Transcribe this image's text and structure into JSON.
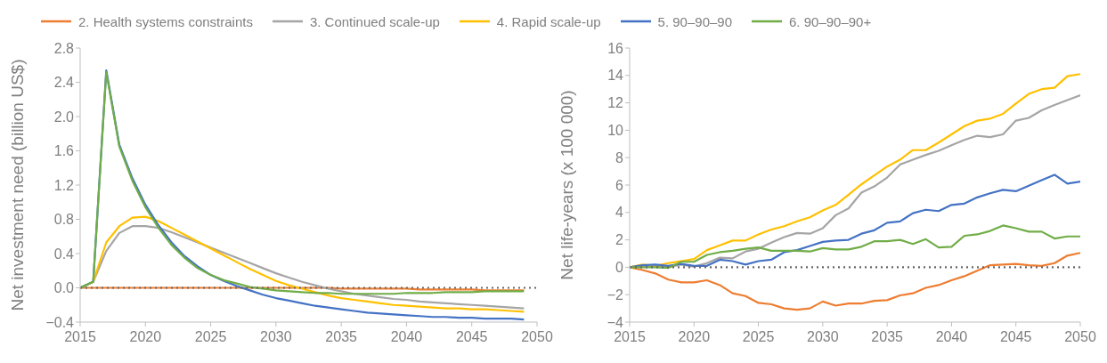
{
  "chart_data": [
    {
      "type": "line",
      "ylabel": "Net investment need (billion US$)",
      "legend": "top",
      "grid": false,
      "marker": "none",
      "x": [
        2015,
        2016,
        2017,
        2018,
        2019,
        2020,
        2021,
        2022,
        2023,
        2024,
        2025,
        2026,
        2027,
        2028,
        2029,
        2030,
        2031,
        2032,
        2033,
        2034,
        2035,
        2036,
        2037,
        2038,
        2039,
        2040,
        2041,
        2042,
        2043,
        2044,
        2045,
        2046,
        2047,
        2048,
        2049
      ],
      "xlim": [
        2015,
        2050
      ],
      "xticks": [
        2015,
        2020,
        2025,
        2030,
        2035,
        2040,
        2045,
        2050
      ],
      "ylim": [
        -0.4,
        2.8
      ],
      "yticks": [
        {
          "value": -0.4,
          "label": "−0.4"
        },
        {
          "value": 0,
          "label": "0.0"
        },
        {
          "value": 0.4,
          "label": "0.4"
        },
        {
          "value": 0.8,
          "label": "0.8"
        },
        {
          "value": 1.2,
          "label": "1.2"
        },
        {
          "value": 1.6,
          "label": "1.6"
        },
        {
          "value": 2,
          "label": "2.0"
        },
        {
          "value": 2.4,
          "label": "2.4"
        },
        {
          "value": 2.8,
          "label": "2.8"
        }
      ],
      "ref_lines": [
        {
          "axis": "y",
          "value": 0,
          "color": "#666666",
          "line_style": "dotted"
        }
      ],
      "series": [
        {
          "name": "2. Health systems constraints",
          "color": "#ed7d31",
          "values": [
            0,
            0,
            0,
            0,
            0,
            0,
            0,
            0,
            0,
            0,
            0,
            0,
            0,
            0,
            0,
            0,
            0,
            0,
            0,
            0,
            -0.01,
            -0.01,
            -0.01,
            -0.01,
            -0.01,
            -0.01,
            -0.02,
            -0.02,
            -0.02,
            -0.02,
            -0.02,
            -0.03,
            -0.03,
            -0.03,
            -0.03
          ]
        },
        {
          "name": "3. Continued scale-up",
          "color": "#a5a5a5",
          "values": [
            0,
            0.07,
            0.43,
            0.64,
            0.72,
            0.72,
            0.7,
            0.65,
            0.59,
            0.53,
            0.47,
            0.41,
            0.35,
            0.29,
            0.23,
            0.17,
            0.12,
            0.07,
            0.03,
            -0.01,
            -0.04,
            -0.07,
            -0.09,
            -0.11,
            -0.13,
            -0.14,
            -0.16,
            -0.17,
            -0.18,
            -0.19,
            -0.2,
            -0.21,
            -0.22,
            -0.23,
            -0.24
          ]
        },
        {
          "name": "4. Rapid scale-up",
          "color": "#ffc000",
          "values": [
            0,
            0.07,
            0.53,
            0.72,
            0.82,
            0.83,
            0.78,
            0.7,
            0.62,
            0.54,
            0.46,
            0.38,
            0.3,
            0.22,
            0.15,
            0.08,
            0.03,
            -0.01,
            -0.05,
            -0.09,
            -0.12,
            -0.14,
            -0.16,
            -0.18,
            -0.2,
            -0.21,
            -0.22,
            -0.23,
            -0.24,
            -0.24,
            -0.25,
            -0.25,
            -0.26,
            -0.27,
            -0.28
          ]
        },
        {
          "name": "5. 90–90–90",
          "color": "#4472c4",
          "values": [
            0,
            0.07,
            2.54,
            1.67,
            1.28,
            0.97,
            0.73,
            0.53,
            0.37,
            0.25,
            0.15,
            0.08,
            0.02,
            -0.03,
            -0.08,
            -0.12,
            -0.15,
            -0.18,
            -0.21,
            -0.23,
            -0.25,
            -0.27,
            -0.29,
            -0.3,
            -0.31,
            -0.32,
            -0.33,
            -0.34,
            -0.34,
            -0.35,
            -0.35,
            -0.36,
            -0.36,
            -0.36,
            -0.37
          ]
        },
        {
          "name": "6. 90–90–90+",
          "color": "#70ad47",
          "values": [
            0,
            0.07,
            2.52,
            1.65,
            1.25,
            0.94,
            0.7,
            0.5,
            0.35,
            0.23,
            0.15,
            0.09,
            0.05,
            0.01,
            -0.01,
            -0.03,
            -0.04,
            -0.05,
            -0.06,
            -0.06,
            -0.07,
            -0.07,
            -0.07,
            -0.07,
            -0.07,
            -0.06,
            -0.06,
            -0.06,
            -0.05,
            -0.05,
            -0.05,
            -0.04,
            -0.04,
            -0.04,
            -0.04
          ]
        }
      ]
    },
    {
      "type": "line",
      "ylabel": "Net life-years (x 100 000)",
      "grid": false,
      "marker": "none",
      "x": [
        2015,
        2016,
        2017,
        2018,
        2019,
        2020,
        2021,
        2022,
        2023,
        2024,
        2025,
        2026,
        2027,
        2028,
        2029,
        2030,
        2031,
        2032,
        2033,
        2034,
        2035,
        2036,
        2037,
        2038,
        2039,
        2040,
        2041,
        2042,
        2043,
        2044,
        2045,
        2046,
        2047,
        2048,
        2049,
        2050
      ],
      "xlim": [
        2015,
        2050
      ],
      "xticks": [
        2015,
        2020,
        2025,
        2030,
        2035,
        2040,
        2045,
        2050
      ],
      "ylim": [
        -4,
        16
      ],
      "yticks": [
        {
          "value": -4,
          "label": "−4"
        },
        {
          "value": -2,
          "label": "−2"
        },
        0,
        2,
        4,
        6,
        8,
        10,
        12,
        14,
        16
      ],
      "ref_lines": [
        {
          "axis": "y",
          "value": 0,
          "color": "#666666",
          "line_style": "dotted"
        }
      ],
      "series": [
        {
          "color": "#ed7d31",
          "values": [
            0,
            -0.2,
            -0.45,
            -0.9,
            -1.1,
            -1.1,
            -0.95,
            -1.3,
            -1.9,
            -2.1,
            -2.6,
            -2.7,
            -3,
            -3.1,
            -3,
            -2.5,
            -2.8,
            -2.65,
            -2.65,
            -2.45,
            -2.4,
            -2.05,
            -1.9,
            -1.5,
            -1.3,
            -0.95,
            -0.65,
            -0.25,
            0.15,
            0.2,
            0.25,
            0.15,
            0.1,
            0.3,
            0.85,
            1.05
          ]
        },
        {
          "color": "#a5a5a5",
          "values": [
            0,
            0.1,
            0.05,
            0,
            0.2,
            0.05,
            0.3,
            0.7,
            0.65,
            1.15,
            1.35,
            1.8,
            2.2,
            2.5,
            2.45,
            2.85,
            3.8,
            4.3,
            5.45,
            5.9,
            6.55,
            7.5,
            7.85,
            8.2,
            8.5,
            8.9,
            9.3,
            9.6,
            9.5,
            9.7,
            10.7,
            10.9,
            11.45,
            11.85,
            12.2,
            12.55
          ]
        },
        {
          "color": "#ffc000",
          "values": [
            0,
            0.2,
            0.1,
            0.3,
            0.45,
            0.6,
            1.25,
            1.6,
            1.95,
            1.95,
            2.4,
            2.75,
            3,
            3.35,
            3.65,
            4.15,
            4.55,
            5.3,
            6.05,
            6.7,
            7.35,
            7.85,
            8.55,
            8.55,
            9.1,
            9.7,
            10.3,
            10.7,
            10.85,
            11.2,
            11.95,
            12.65,
            13,
            13.1,
            13.95,
            14.1
          ]
        },
        {
          "color": "#4472c4",
          "values": [
            0,
            0.15,
            0.2,
            0.1,
            0.25,
            0.1,
            0.1,
            0.55,
            0.45,
            0.2,
            0.45,
            0.55,
            1.1,
            1.25,
            1.55,
            1.85,
            1.95,
            2,
            2.45,
            2.7,
            3.25,
            3.35,
            3.95,
            4.2,
            4.1,
            4.55,
            4.65,
            5.1,
            5.4,
            5.65,
            5.55,
            5.95,
            6.35,
            6.75,
            6.1,
            6.25
          ]
        },
        {
          "color": "#70ad47",
          "values": [
            0,
            0,
            0,
            -0.05,
            0.4,
            0.4,
            0.9,
            1.1,
            1.2,
            1.35,
            1.45,
            1.2,
            1.2,
            1.2,
            1.15,
            1.4,
            1.3,
            1.3,
            1.5,
            1.9,
            1.9,
            2,
            1.7,
            2.05,
            1.45,
            1.5,
            2.3,
            2.4,
            2.65,
            3.05,
            2.85,
            2.6,
            2.6,
            2.1,
            2.25,
            2.25
          ]
        }
      ]
    }
  ]
}
